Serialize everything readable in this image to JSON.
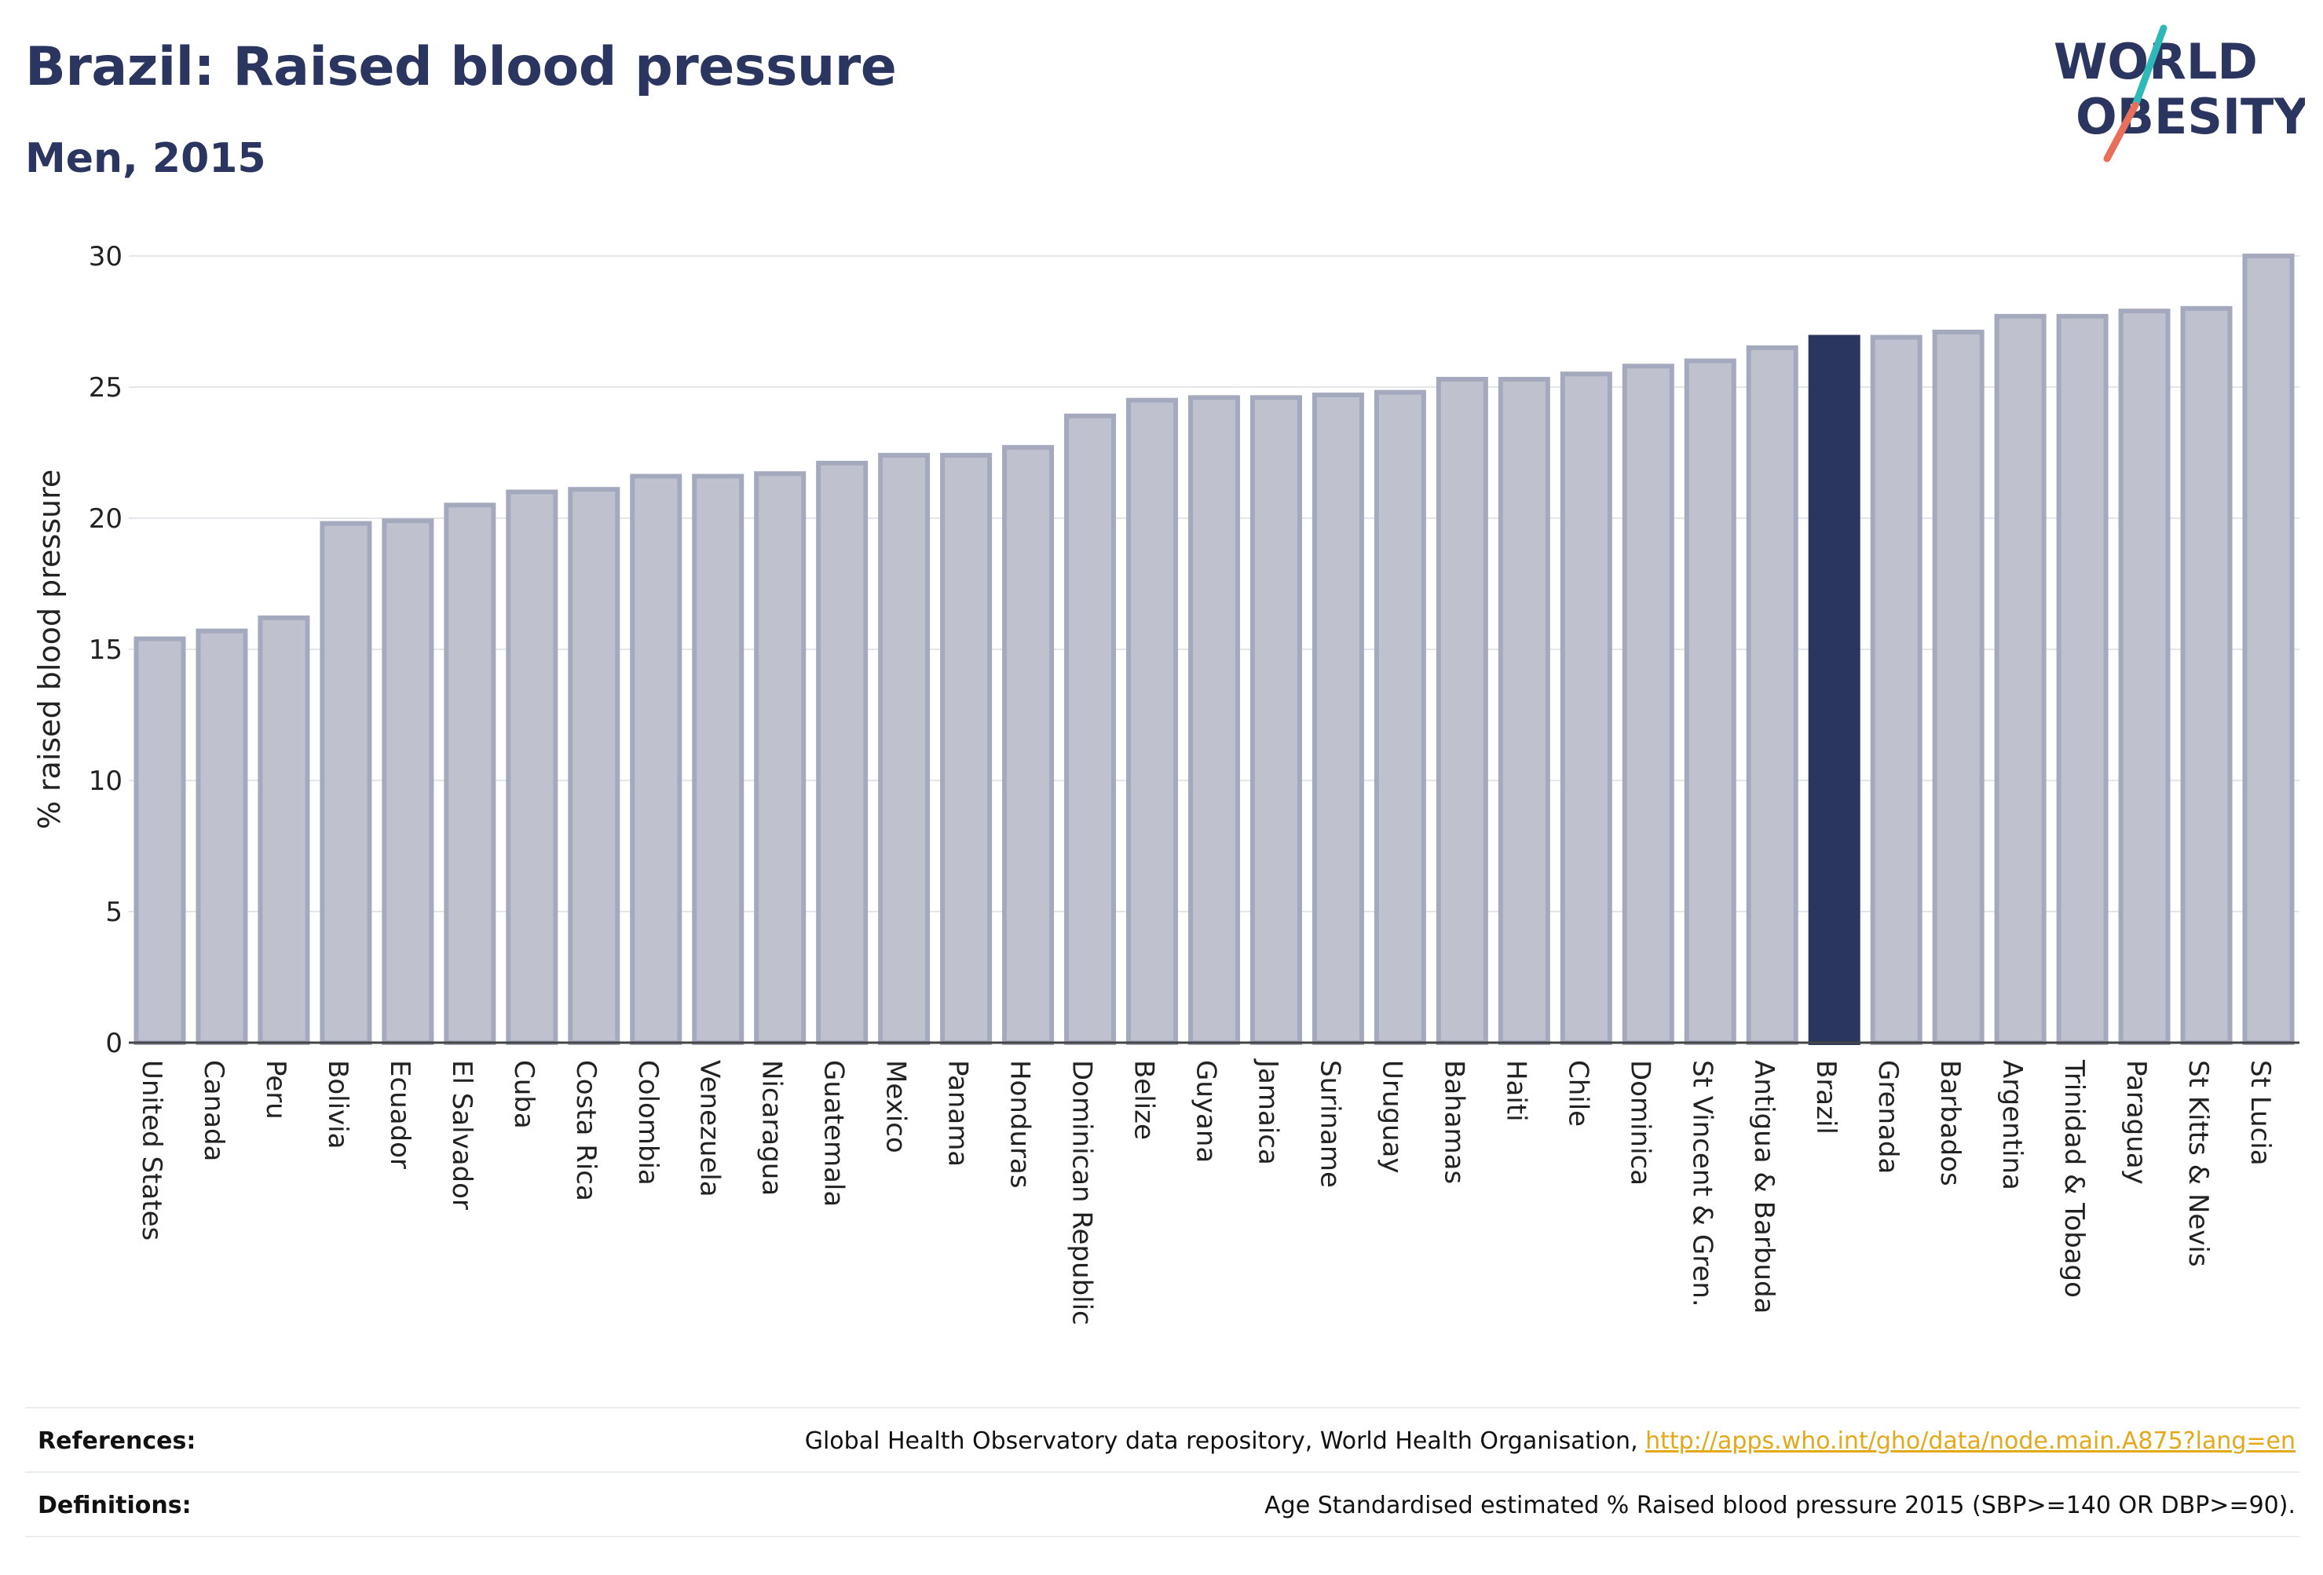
{
  "title": "Brazil: Raised blood pressure",
  "subtitle": "Men, 2015",
  "logo": {
    "line1": "WORLD",
    "line2": "OBESITY",
    "colors": {
      "text": "#2a3560",
      "slash_top": "#2fb8b8",
      "slash_bottom": "#e8705a"
    }
  },
  "colors": {
    "bar_fill": "#bfc2ce",
    "bar_stroke": "#a5a9bd",
    "highlight_fill": "#2a3560",
    "grid": "#e3e5ea",
    "text": "#2a3560"
  },
  "chart_data": {
    "type": "bar",
    "ylabel": "% raised blood pressure",
    "ylim": [
      0,
      30
    ],
    "yticks": [
      0,
      5,
      10,
      15,
      20,
      25,
      30
    ],
    "grid": true,
    "highlight": "Brazil",
    "categories": [
      "United States",
      "Canada",
      "Peru",
      "Bolivia",
      "Ecuador",
      "El Salvador",
      "Cuba",
      "Costa Rica",
      "Colombia",
      "Venezuela",
      "Nicaragua",
      "Guatemala",
      "Mexico",
      "Panama",
      "Honduras",
      "Dominican Republic",
      "Belize",
      "Guyana",
      "Jamaica",
      "Suriname",
      "Uruguay",
      "Bahamas",
      "Haiti",
      "Chile",
      "Dominica",
      "St Vincent & Gren.",
      "Antigua & Barbuda",
      "Brazil",
      "Grenada",
      "Barbados",
      "Argentina",
      "Trinidad & Tobago",
      "Paraguay",
      "St Kitts & Nevis",
      "St Lucia"
    ],
    "values": [
      15.4,
      15.7,
      16.2,
      19.8,
      19.9,
      20.5,
      21.0,
      21.1,
      21.6,
      21.6,
      21.7,
      22.1,
      22.4,
      22.4,
      22.7,
      23.9,
      24.5,
      24.6,
      24.6,
      24.7,
      24.8,
      25.3,
      25.3,
      25.5,
      25.8,
      26.0,
      26.5,
      26.9,
      26.9,
      27.1,
      27.7,
      27.7,
      27.9,
      28.0,
      30.0
    ]
  },
  "footer": {
    "references_label": "References:",
    "references_text": "Global Health Observatory data repository, World Health Organisation, ",
    "references_link": "http://apps.who.int/gho/data/node.main.A875?lang=en",
    "definitions_label": "Definitions:",
    "definitions_text": "Age Standardised estimated % Raised blood pressure 2015 (SBP>=140 OR DBP>=90)."
  }
}
